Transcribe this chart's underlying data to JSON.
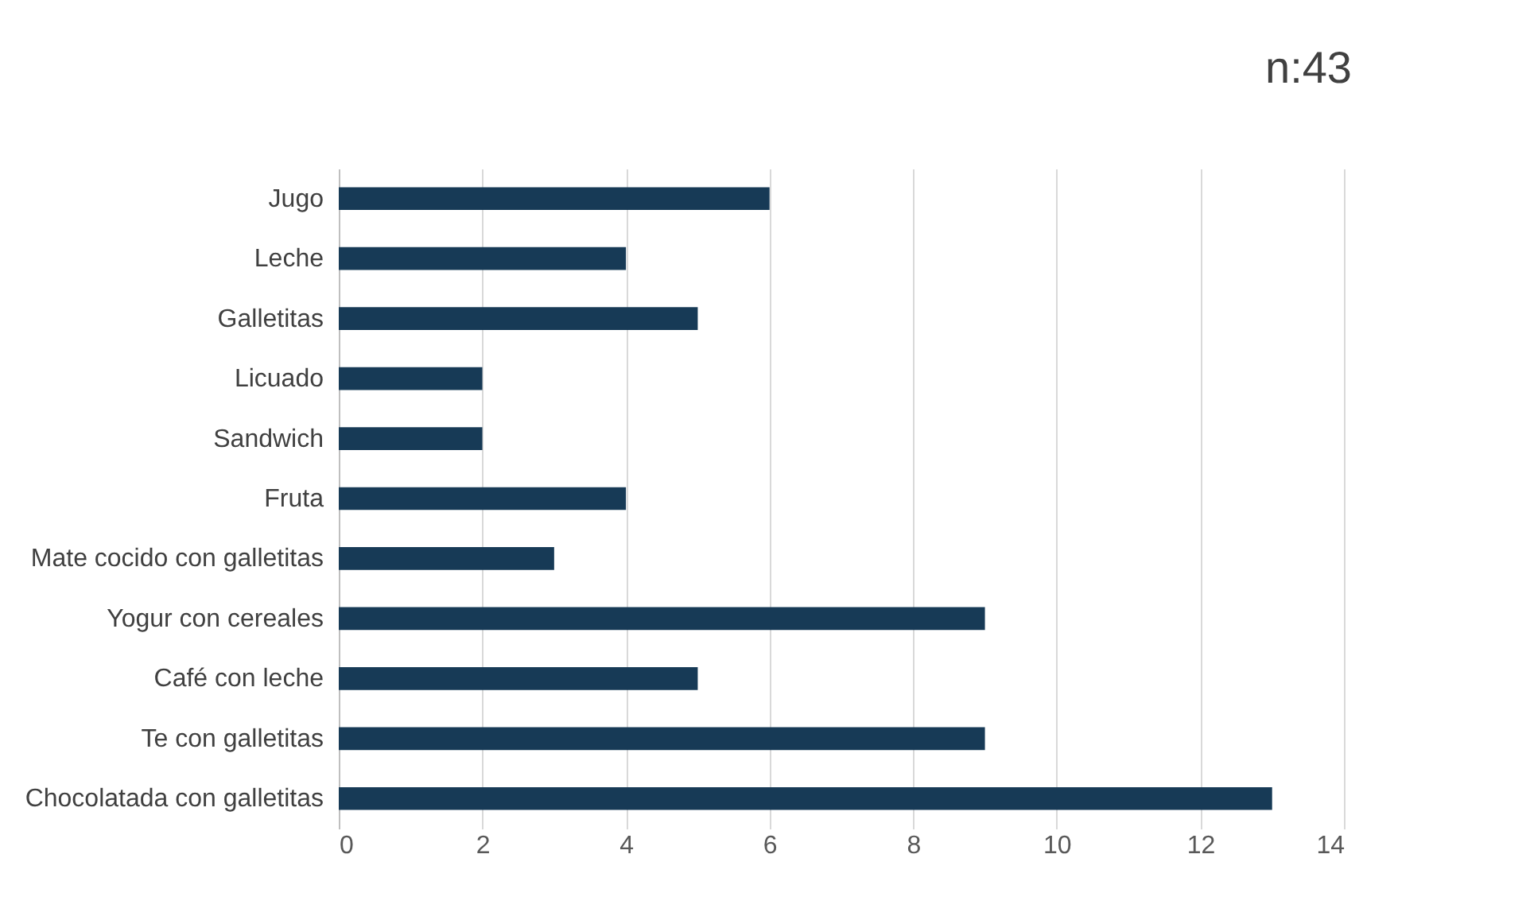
{
  "chart_data": {
    "type": "bar",
    "orientation": "horizontal",
    "categories": [
      "Jugo",
      "Leche",
      "Galletitas",
      "Licuado",
      "Sandwich",
      "Fruta",
      "Mate cocido con galletitas",
      "Yogur con cereales",
      "Café con leche",
      "Te con galletitas",
      "Chocolatada con galletitas"
    ],
    "values": [
      6,
      4,
      5,
      2,
      2,
      4,
      3,
      9,
      5,
      9,
      13
    ],
    "color": "#173a56",
    "xlim": [
      0,
      14
    ],
    "xticks": [
      0,
      2,
      4,
      6,
      8,
      10,
      12,
      14
    ],
    "grid": "x",
    "annotations": [
      "n:43"
    ]
  }
}
